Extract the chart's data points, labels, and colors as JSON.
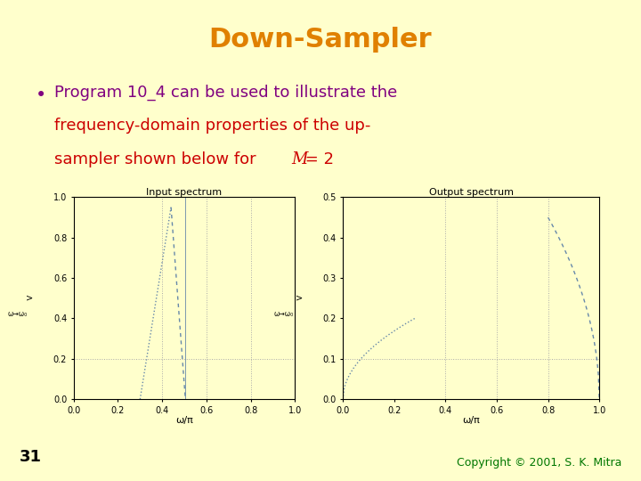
{
  "bg_color": "#FFFFCC",
  "title": "Down-Sampler",
  "title_color": "#E08000",
  "bullet_color": "#800080",
  "text_color": "#CC0000",
  "slide_number": "31",
  "copyright": "Copyright © 2001, S. K. Mitra",
  "copyright_color": "#007700",
  "plot1_title": "Input spectrum",
  "plot2_title": "Output spectrum",
  "xlabel": "ω/π",
  "plot1_xlim": [
    0,
    1
  ],
  "plot1_ylim": [
    0,
    1
  ],
  "plot2_xlim": [
    0,
    1
  ],
  "plot2_ylim": [
    0,
    0.5
  ],
  "plot1_yticks": [
    0,
    0.2,
    0.4,
    0.6,
    0.8,
    1
  ],
  "plot2_yticks": [
    0,
    0.1,
    0.2,
    0.3,
    0.4,
    0.5
  ],
  "plot1_xticks": [
    0,
    0.2,
    0.4,
    0.6,
    0.8,
    1
  ],
  "plot2_xticks": [
    0,
    0.2,
    0.4,
    0.6,
    0.8,
    1
  ],
  "line_color": "#6688AA",
  "grid_color": "#AAAAAA"
}
